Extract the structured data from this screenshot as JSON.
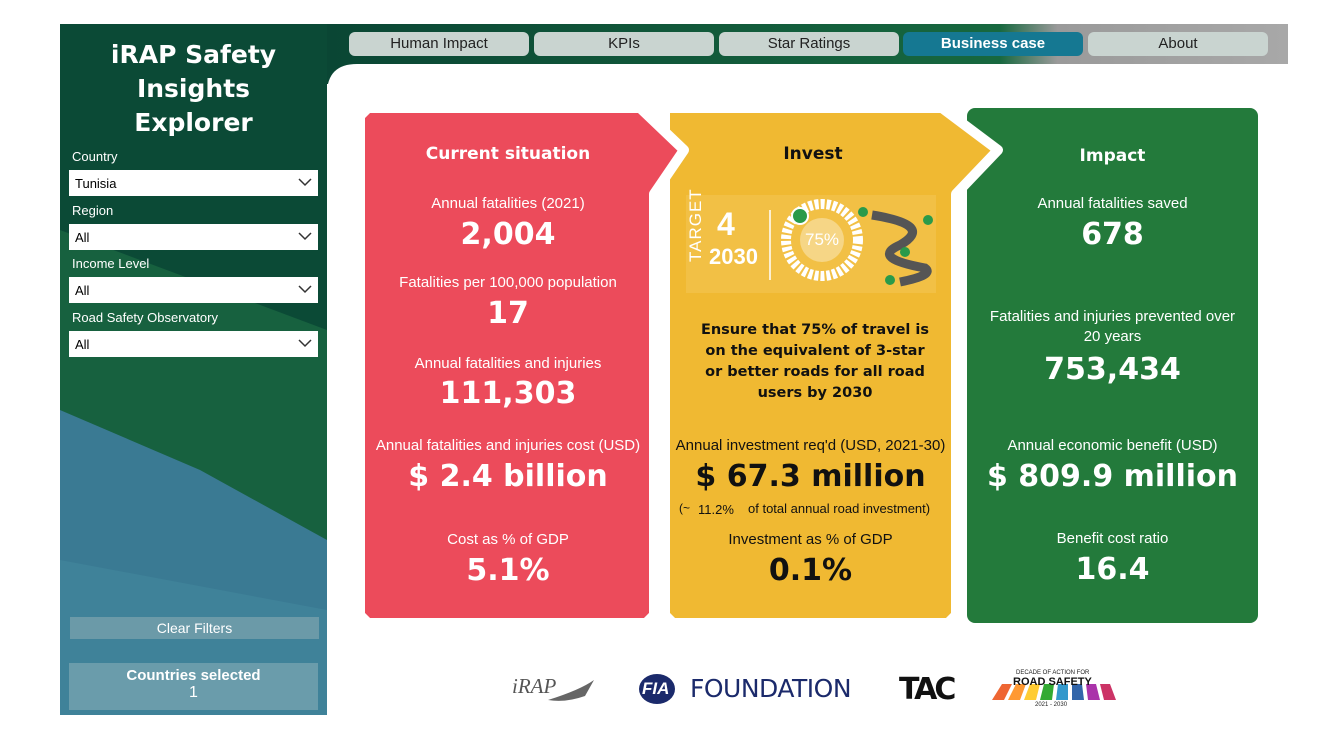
{
  "sidebar": {
    "title": "iRAP Safety Insights Explorer",
    "filters": [
      {
        "label": "Country",
        "value": "Tunisia"
      },
      {
        "label": "Region",
        "value": "All"
      },
      {
        "label": "Income Level",
        "value": "All"
      },
      {
        "label": "Road Safety Observatory",
        "value": "All"
      }
    ],
    "clear_button": "Clear Filters",
    "countries_selected": {
      "label": "Countries selected",
      "value": 1
    }
  },
  "tabs": [
    {
      "label": "Human Impact",
      "active": false
    },
    {
      "label": "KPIs",
      "active": false
    },
    {
      "label": "Star Ratings",
      "active": false
    },
    {
      "label": "Business case",
      "active": true
    },
    {
      "label": "About",
      "active": false
    }
  ],
  "panels": [
    {
      "title": "Current situation",
      "color": "#ec4b5b",
      "metrics": [
        {
          "label": "Annual fatalities (2021)",
          "value": "2,004"
        },
        {
          "label": "Fatalities per 100,000 population",
          "value": "17"
        },
        {
          "label": "Annual fatalities and injuries",
          "value": "111,303"
        },
        {
          "label": "Annual fatalities and injuries cost (USD)",
          "value": "$ 2.4 billion"
        },
        {
          "label": "Cost as % of GDP",
          "value": "5.1%"
        }
      ]
    },
    {
      "title": "Invest",
      "color": "#f0b932",
      "graphic": {
        "target": "TARGET",
        "number": "4",
        "year": "2030",
        "percent": "75%"
      },
      "statement": "Ensure that 75% of travel is on the equivalent of 3-star or better roads for all road users by 2030",
      "metrics": [
        {
          "label": "Annual investment req'd (USD, 2021-30)",
          "value": "$ 67.3 million"
        },
        {
          "label": "Investment as % of GDP",
          "value": "0.1%"
        }
      ],
      "note": {
        "prefix": "(~",
        "value": "11.2%",
        "suffix": "of total annual road investment)"
      }
    },
    {
      "title": "Impact",
      "color": "#237a3b",
      "metrics": [
        {
          "label": "Annual fatalities saved",
          "value": "678"
        },
        {
          "label": "Fatalities and injuries prevented over 20 years",
          "value": "753,434"
        },
        {
          "label": "Annual economic benefit (USD)",
          "value": "$ 809.9 million"
        },
        {
          "label": "Benefit cost ratio",
          "value": "16.4"
        }
      ]
    }
  ],
  "logos": {
    "irap": "iRAP",
    "fia": "FIA",
    "foundation": "FOUNDATION",
    "tac": "TAC",
    "decade": "DECADE OF ACTION FOR",
    "road_safety": "ROAD SAFETY",
    "years": "2021 - 2030"
  }
}
